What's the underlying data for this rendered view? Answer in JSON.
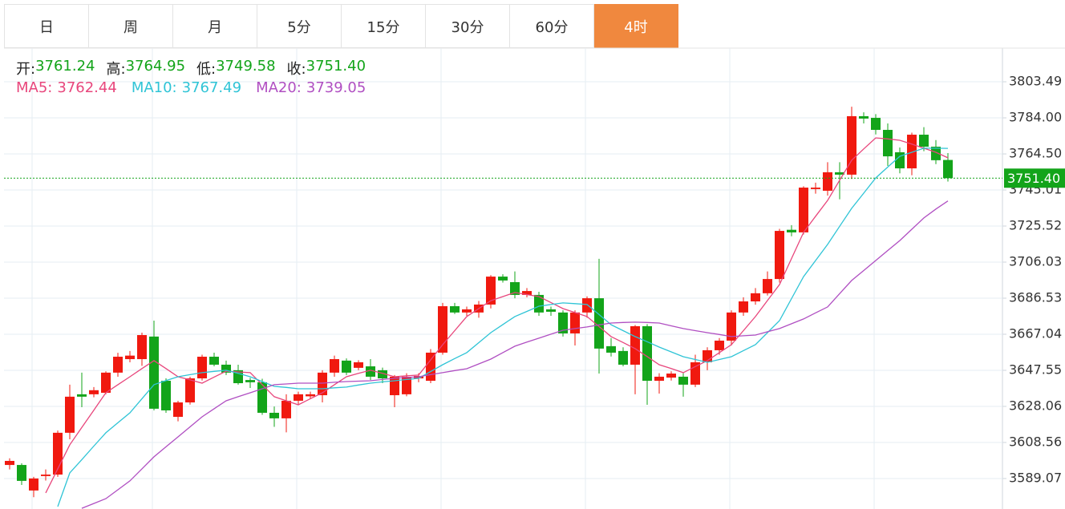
{
  "tabs": [
    "日",
    "周",
    "月",
    "5分",
    "15分",
    "30分",
    "60分",
    "4时"
  ],
  "active_tab": "4时",
  "chart_data": {
    "type": "candlestick",
    "info": [
      {
        "label": "开:",
        "value": "3761.24"
      },
      {
        "label": "高:",
        "value": "3764.95"
      },
      {
        "label": "低:",
        "value": "3749.58"
      },
      {
        "label": "收:",
        "value": "3751.40"
      }
    ],
    "ylim": [
      3572.6,
      3821.7
    ],
    "yticks": [
      3803.49,
      {
        "value": 3784,
        "label": "3784.00"
      },
      {
        "value": 3764.5,
        "label": "3764.50"
      },
      3745.01,
      3725.52,
      3706.03,
      3686.53,
      3667.04,
      3647.55,
      3628.06,
      3608.56,
      3589.07
    ],
    "grid": true,
    "up_color": "#f0190f",
    "down_color": "#13a41a",
    "last_price": {
      "value": 3751.4,
      "label": "3751.40"
    },
    "open": [
      3596.4,
      3596.4,
      3582.6,
      3590.4,
      3591.2,
      3613.8,
      3634.6,
      3634.6,
      3635.4,
      3646.3,
      3653.6,
      3653.6,
      3665.8,
      3641.9,
      3622.4,
      3630.2,
      3643.2,
      3654.9,
      3650.6,
      3647.6,
      3642.3,
      3641.1,
      3624.6,
      3621.6,
      3631.1,
      3633.5,
      3634.1,
      3646.3,
      3652.8,
      3648.9,
      3649.7,
      3647.6,
      3634.1,
      3634.6,
      3643.2,
      3641.9,
      3657.1,
      3682.2,
      3678.8,
      3678.8,
      3683.1,
      3698.2,
      3695.2,
      3688.3,
      3688.3,
      3680.5,
      3678.8,
      3667.5,
      3678.8,
      3686.5,
      3660.6,
      3658.0,
      3650.6,
      3671.4,
      3641.9,
      3643.6,
      3644.1,
      3639.8,
      3651.9,
      3658.4,
      3663.6,
      3678.8,
      3684.8,
      3689.2,
      3696.9,
      3723.5,
      3722.1,
      3745.5,
      3744.6,
      3754.6,
      3753.3,
      3784.9,
      3784.0,
      3777.5,
      3765.4,
      3756.7,
      3774.9,
      3768.4,
      3761.24
    ],
    "high": [
      3600,
      3597.3,
      3590,
      3594,
      3615,
      3639.8,
      3646.3,
      3638.5,
      3647,
      3657,
      3658,
      3667.9,
      3674.4,
      3643.2,
      3631.1,
      3644.1,
      3656,
      3657.1,
      3652.8,
      3650.6,
      3643.5,
      3643,
      3628,
      3634.6,
      3636,
      3636,
      3647.6,
      3655.5,
      3654,
      3653,
      3653.6,
      3649,
      3645,
      3646,
      3646,
      3659,
      3684,
      3684,
      3682,
      3685,
      3699,
      3699.5,
      3701,
      3692,
      3690,
      3682,
      3680,
      3680,
      3687.5,
      3707.8,
      3665,
      3660,
      3672,
      3672.5,
      3646,
      3647,
      3646,
      3656,
      3660,
      3665,
      3680,
      3687,
      3692,
      3701,
      3724,
      3726,
      3747,
      3749,
      3760,
      3760,
      3790,
      3787,
      3786,
      3781,
      3768,
      3776,
      3779,
      3772,
      3764.95
    ],
    "low": [
      3594,
      3585.6,
      3579,
      3588,
      3590,
      3610.3,
      3627.6,
      3633,
      3634.6,
      3644.1,
      3651.9,
      3650,
      3625.9,
      3624.6,
      3620,
      3629,
      3642,
      3649.7,
      3645,
      3639.8,
      3638,
      3623.5,
      3617,
      3614,
      3629,
      3632,
      3630.2,
      3644.1,
      3645,
      3647.6,
      3642.3,
      3640.6,
      3627.6,
      3633.5,
      3641.1,
      3640.6,
      3656,
      3678,
      3677,
      3676,
      3681,
      3695,
      3686.5,
      3687,
      3677,
      3677,
      3665.8,
      3661,
      3676,
      3645.8,
      3655,
      3649.7,
      3634.6,
      3628.9,
      3635,
      3642,
      3633.3,
      3638.5,
      3647.6,
      3656,
      3661,
      3677,
      3683,
      3688,
      3695,
      3720,
      3721,
      3743,
      3742,
      3740,
      3751,
      3781,
      3775,
      3758,
      3754,
      3753,
      3766,
      3759,
      3749.58
    ],
    "close": [
      3598.6,
      3587.8,
      3589.1,
      3591.2,
      3613.8,
      3633.3,
      3633.3,
      3636.8,
      3646.3,
      3654.9,
      3655.5,
      3666.6,
      3626.8,
      3625.9,
      3630.2,
      3643.2,
      3654.9,
      3650.6,
      3646.3,
      3640.6,
      3641.1,
      3624.6,
      3621.6,
      3631.1,
      3634.6,
      3634.6,
      3646.3,
      3653.6,
      3646.3,
      3651.9,
      3644.1,
      3643.2,
      3644.1,
      3644.1,
      3644.5,
      3657.1,
      3682.2,
      3678.8,
      3680.5,
      3683.1,
      3698.2,
      3696.1,
      3688.3,
      3690.4,
      3678.8,
      3679.2,
      3667.5,
      3678.8,
      3686.5,
      3659.3,
      3657.1,
      3650.6,
      3671.4,
      3641.9,
      3644.1,
      3645.8,
      3639.8,
      3651.9,
      3658.4,
      3663.6,
      3678.8,
      3684.8,
      3689.2,
      3696.9,
      3722.9,
      3722.1,
      3746.3,
      3746.3,
      3754.6,
      3753.3,
      3784.9,
      3783.6,
      3777.5,
      3763.2,
      3756.7,
      3774.9,
      3768.4,
      3761.1,
      3751.4
    ],
    "series": [
      {
        "name": "MA5:",
        "value_label": "3762.44",
        "color": "#e8467c",
        "values": [
          null,
          null,
          null,
          3581.3,
          3594.3,
          3607.3,
          3616.7,
          3626.0,
          3635.4,
          3639.8,
          3644.1,
          3648.5,
          3652.8,
          3648.5,
          3644.1,
          3642.4,
          3640.6,
          3643.9,
          3647.1,
          3646.7,
          3646.3,
          3639.8,
          3633.3,
          3631.1,
          3628.9,
          3632.2,
          3635.4,
          3639.8,
          3644.1,
          3645.9,
          3647.6,
          3645.9,
          3644.1,
          3644.6,
          3645.0,
          3653.2,
          3661.4,
          3669.0,
          3676.6,
          3680.9,
          3685.2,
          3687.4,
          3689.6,
          3688.5,
          3687.4,
          3684.2,
          3680.9,
          3678.8,
          3676.6,
          3671.2,
          3665.8,
          3662.6,
          3659.3,
          3655.0,
          3650.6,
          3648.5,
          3646.3,
          3649.6,
          3652.8,
          3657.1,
          3661.4,
          3669.0,
          3676.6,
          3685.3,
          3693.9,
          3708.0,
          3722.1,
          3730.8,
          3739.4,
          3750.3,
          3761.1,
          3767.2,
          3773.2,
          3772.6,
          3771.9,
          3769.8,
          3767.6,
          3765.4,
          3762.4
        ]
      },
      {
        "name": "MA10:",
        "value_label": "3767.49",
        "color": "#2fc4d6",
        "values": [
          null,
          null,
          null,
          null,
          3573.9,
          3592.1,
          3599.3,
          3606.6,
          3613.8,
          3619.2,
          3624.6,
          3632.2,
          3639.8,
          3642.0,
          3644.1,
          3645.2,
          3646.3,
          3647.0,
          3647.6,
          3645.9,
          3644.1,
          3641.5,
          3638.9,
          3638.3,
          3637.6,
          3637.6,
          3637.6,
          3638.1,
          3638.5,
          3639.6,
          3640.6,
          3641.3,
          3641.9,
          3642.6,
          3643.2,
          3646.9,
          3650.6,
          3653.9,
          3657.1,
          3662.5,
          3667.9,
          3672.3,
          3676.6,
          3679.4,
          3682.2,
          3683.1,
          3684.0,
          3683.6,
          3683.1,
          3677.7,
          3672.2,
          3669.0,
          3665.8,
          3663.0,
          3660.1,
          3657.5,
          3654.9,
          3653.4,
          3651.9,
          3653.4,
          3654.9,
          3658.2,
          3661.4,
          3667.9,
          3674.4,
          3686.3,
          3698.2,
          3706.9,
          3715.6,
          3725.4,
          3735.1,
          3743.3,
          3751.5,
          3757.4,
          3763.2,
          3765.4,
          3767.6,
          3767.6,
          3767.5
        ]
      },
      {
        "name": "MA20:",
        "value_label": "3739.05",
        "color": "#b04fc2",
        "values": [
          null,
          null,
          null,
          null,
          null,
          null,
          3573.0,
          3575.6,
          3578.2,
          3583.0,
          3587.8,
          3594.3,
          3600.8,
          3606.2,
          3611.6,
          3617.0,
          3622.4,
          3626.8,
          3631.1,
          3633.3,
          3635.4,
          3637.6,
          3639.8,
          3640.2,
          3640.6,
          3640.6,
          3640.6,
          3641.1,
          3641.5,
          3641.7,
          3641.9,
          3642.6,
          3643.2,
          3643.7,
          3644.1,
          3645.2,
          3646.3,
          3647.4,
          3648.4,
          3651.0,
          3653.6,
          3657.1,
          3660.6,
          3662.8,
          3664.9,
          3667.1,
          3669.2,
          3670.1,
          3671.0,
          3672.1,
          3673.1,
          3673.4,
          3673.6,
          3673.4,
          3673.1,
          3671.6,
          3670.1,
          3669.0,
          3667.9,
          3666.9,
          3665.8,
          3666.2,
          3666.6,
          3668.4,
          3670.1,
          3672.7,
          3675.3,
          3678.6,
          3681.8,
          3689.0,
          3696.1,
          3701.5,
          3706.9,
          3712.3,
          3717.7,
          3723.8,
          3729.9,
          3734.7,
          3739.1
        ]
      }
    ]
  }
}
